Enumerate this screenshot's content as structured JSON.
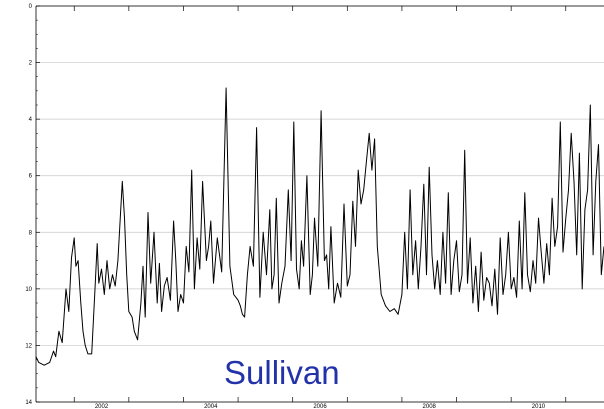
{
  "chart_data": {
    "type": "line",
    "title": "",
    "xlabel": "",
    "ylabel": "",
    "xlim": [
      2001.3,
      2011.7
    ],
    "ylim": [
      14,
      0
    ],
    "y_inverted": true,
    "grid": "horizontal",
    "y_ticks": [
      "0",
      "2",
      "4",
      "6",
      "8",
      "10",
      "12",
      "14"
    ],
    "x_ticks": [
      "2002",
      "2004",
      "2006",
      "2008",
      "2010"
    ],
    "annotation": "Sullivan",
    "line_color": "#000000",
    "annotation_color": "#2233aa",
    "series": [
      {
        "x": [
          2001.3,
          2001.35,
          2001.45,
          2001.55,
          2001.62,
          2001.66,
          2001.72,
          2001.78,
          2001.85,
          2001.9,
          2001.95,
          2002.0,
          2002.03,
          2002.07,
          2002.12,
          2002.16,
          2002.2,
          2002.25,
          2002.32,
          2002.38,
          2002.42,
          2002.45,
          2002.5,
          2002.55,
          2002.6,
          2002.65,
          2002.7,
          2002.75,
          2002.8,
          2002.88,
          2002.92,
          2002.96,
          2003.0,
          2003.06,
          2003.1,
          2003.16,
          2003.22,
          2003.26,
          2003.3,
          2003.35,
          2003.4,
          2003.46,
          2003.52,
          2003.56,
          2003.6,
          2003.65,
          2003.7,
          2003.76,
          2003.82,
          2003.86,
          2003.9,
          2003.95,
          2004.0,
          2004.05,
          2004.1,
          2004.15,
          2004.2,
          2004.25,
          2004.3,
          2004.35,
          2004.42,
          2004.46,
          2004.5,
          2004.55,
          2004.62,
          2004.7,
          2004.78,
          2004.85,
          2004.92,
          2004.96,
          2005.0,
          2005.04,
          2005.08,
          2005.12,
          2005.17,
          2005.22,
          2005.28,
          2005.34,
          2005.4,
          2005.46,
          2005.52,
          2005.58,
          2005.62,
          2005.66,
          2005.7,
          2005.75,
          2005.8,
          2005.86,
          2005.92,
          2005.97,
          2006.02,
          2006.07,
          2006.12,
          2006.16,
          2006.2,
          2006.26,
          2006.32,
          2006.36,
          2006.4,
          2006.46,
          2006.52,
          2006.58,
          2006.62,
          2006.66,
          2006.7,
          2006.76,
          2006.82,
          2006.88,
          2006.94,
          2007.0,
          2007.05,
          2007.1,
          2007.15,
          2007.2,
          2007.25,
          2007.3,
          2007.35,
          2007.4,
          2007.45,
          2007.5,
          2007.55,
          2007.62,
          2007.7,
          2007.78,
          2007.86,
          2007.93,
          2008.0,
          2008.05,
          2008.1,
          2008.15,
          2008.2,
          2008.25,
          2008.3,
          2008.35,
          2008.4,
          2008.45,
          2008.5,
          2008.55,
          2008.6,
          2008.65,
          2008.7,
          2008.75,
          2008.8,
          2008.85,
          2008.9,
          2008.95,
          2009.0,
          2009.05,
          2009.1,
          2009.15,
          2009.2,
          2009.25,
          2009.3,
          2009.35,
          2009.4,
          2009.45,
          2009.5,
          2009.55,
          2009.6,
          2009.65,
          2009.7,
          2009.75,
          2009.8,
          2009.85,
          2009.9,
          2009.95,
          2010.0,
          2010.05,
          2010.1,
          2010.15,
          2010.2,
          2010.25,
          2010.3,
          2010.35,
          2010.4,
          2010.45,
          2010.5,
          2010.55,
          2010.6,
          2010.65,
          2010.7,
          2010.75,
          2010.8,
          2010.85,
          2010.9,
          2010.95,
          2011.0,
          2011.05,
          2011.1,
          2011.15,
          2011.2,
          2011.25,
          2011.3,
          2011.35,
          2011.4,
          2011.45,
          2011.5,
          2011.55,
          2011.6,
          2011.65,
          2011.7
        ],
        "y": [
          12.4,
          12.6,
          12.7,
          12.6,
          12.2,
          12.4,
          11.5,
          11.9,
          10.0,
          10.8,
          8.9,
          8.2,
          9.2,
          9.0,
          10.5,
          11.5,
          12.0,
          12.3,
          12.3,
          10.0,
          8.4,
          9.8,
          9.3,
          10.2,
          9.0,
          10.0,
          9.5,
          9.9,
          9.0,
          6.2,
          7.5,
          9.5,
          10.8,
          11.0,
          11.5,
          11.8,
          10.5,
          9.2,
          11.0,
          7.3,
          9.8,
          8.0,
          10.5,
          9.1,
          10.8,
          9.9,
          9.6,
          10.4,
          7.6,
          9.0,
          10.8,
          10.2,
          10.5,
          8.5,
          9.4,
          5.8,
          10.0,
          8.2,
          9.3,
          6.2,
          9.0,
          8.5,
          7.6,
          9.8,
          8.2,
          9.4,
          2.9,
          9.2,
          10.2,
          10.3,
          10.4,
          10.6,
          10.9,
          11.0,
          9.5,
          8.5,
          9.2,
          4.3,
          10.3,
          8.0,
          9.5,
          7.2,
          10.0,
          9.5,
          6.8,
          10.5,
          9.8,
          9.2,
          6.5,
          9.0,
          4.1,
          9.3,
          10.0,
          8.3,
          9.2,
          6.0,
          10.2,
          9.5,
          7.5,
          9.2,
          3.7,
          9.0,
          8.8,
          10.0,
          7.8,
          10.5,
          9.8,
          10.3,
          7.0,
          9.9,
          9.5,
          6.9,
          8.5,
          5.8,
          7.0,
          6.5,
          5.5,
          4.5,
          5.8,
          4.7,
          8.5,
          10.2,
          10.6,
          10.8,
          10.7,
          10.9,
          10.2,
          8.0,
          10.0,
          6.5,
          9.5,
          8.3,
          10.0,
          8.5,
          6.3,
          9.5,
          5.7,
          8.8,
          10.0,
          9.0,
          10.2,
          8.0,
          9.8,
          6.6,
          10.2,
          9.0,
          8.3,
          10.1,
          9.5,
          5.1,
          9.8,
          8.2,
          10.5,
          9.2,
          10.8,
          8.7,
          10.4,
          9.6,
          9.8,
          10.6,
          9.3,
          10.9,
          8.2,
          10.2,
          9.5,
          8.0,
          10.0,
          9.6,
          10.3,
          7.6,
          10.0,
          6.6,
          9.5,
          10.1,
          9.0,
          9.8,
          7.5,
          8.7,
          9.8,
          8.4,
          9.5,
          6.8,
          8.5,
          7.8,
          4.1,
          8.7,
          7.5,
          6.5,
          4.5,
          6.2,
          8.8,
          5.2,
          10.0,
          7.2,
          6.5,
          3.5,
          8.8,
          6.2,
          4.9,
          9.5,
          8.5
        ]
      }
    ]
  }
}
